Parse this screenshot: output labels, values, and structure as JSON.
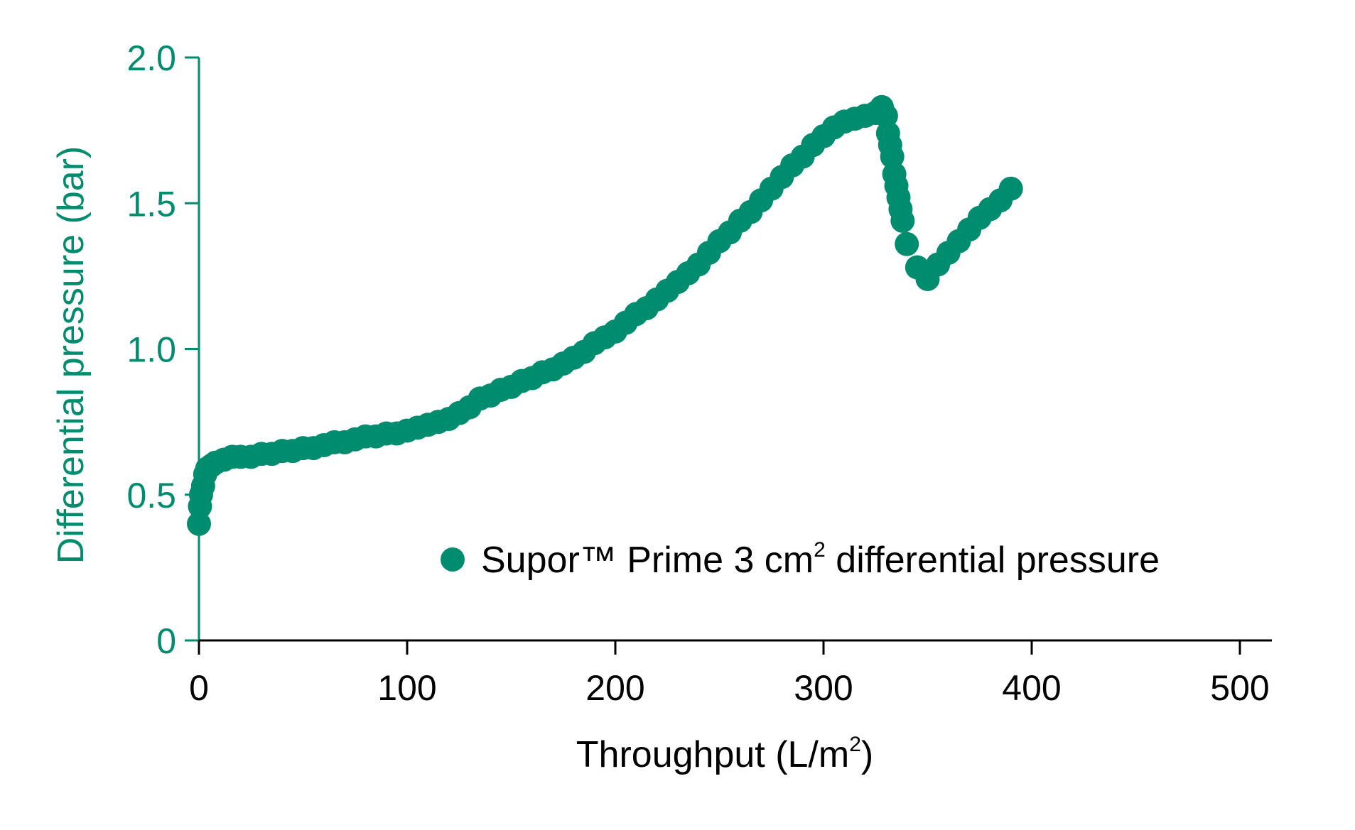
{
  "colors": {
    "series": "#008C6E",
    "y_axis": "#008C6E",
    "x_axis": "#000000",
    "background": "#ffffff"
  },
  "chart_data": {
    "type": "scatter",
    "title": "",
    "xlabel": "Throughput (L/m",
    "xlabel_sup": "2",
    "xlabel_end": ")",
    "ylabel": "Differential pressure (bar)",
    "xlim": [
      0,
      500
    ],
    "ylim": [
      0,
      2.0
    ],
    "x_ticks": [
      "0",
      "100",
      "200",
      "300",
      "400",
      "500"
    ],
    "y_ticks": [
      "0",
      "0.5",
      "1.0",
      "1.5",
      "2.0"
    ],
    "grid": false,
    "legend": {
      "placement": "lower-right",
      "label": "Supor™ Prime 3 cm",
      "label_sup": "2",
      "label_end": " differential pressure"
    },
    "series": [
      {
        "name": "Supor™ Prime 3 cm2 differential pressure",
        "x": [
          0,
          0.5,
          1,
          2,
          3,
          4,
          6,
          8,
          12,
          16,
          20,
          25,
          30,
          35,
          40,
          45,
          50,
          55,
          60,
          65,
          70,
          75,
          80,
          85,
          90,
          95,
          100,
          105,
          110,
          115,
          120,
          125,
          130,
          135,
          140,
          145,
          150,
          155,
          160,
          165,
          170,
          175,
          180,
          185,
          190,
          195,
          200,
          205,
          210,
          215,
          220,
          225,
          230,
          235,
          240,
          245,
          250,
          255,
          260,
          265,
          270,
          275,
          280,
          285,
          290,
          295,
          300,
          305,
          310,
          315,
          320,
          325,
          328,
          330,
          331,
          332,
          333,
          334,
          335,
          336,
          337,
          338,
          340,
          345,
          350,
          355,
          360,
          365,
          370,
          375,
          380,
          385,
          390
        ],
        "y": [
          0.4,
          0.46,
          0.5,
          0.53,
          0.57,
          0.59,
          0.6,
          0.61,
          0.62,
          0.63,
          0.63,
          0.63,
          0.64,
          0.64,
          0.65,
          0.65,
          0.66,
          0.66,
          0.67,
          0.68,
          0.68,
          0.69,
          0.7,
          0.7,
          0.71,
          0.71,
          0.72,
          0.73,
          0.74,
          0.75,
          0.76,
          0.78,
          0.8,
          0.83,
          0.84,
          0.86,
          0.87,
          0.89,
          0.9,
          0.92,
          0.93,
          0.95,
          0.97,
          0.99,
          1.02,
          1.04,
          1.06,
          1.09,
          1.12,
          1.14,
          1.17,
          1.2,
          1.23,
          1.26,
          1.29,
          1.33,
          1.37,
          1.4,
          1.44,
          1.47,
          1.51,
          1.55,
          1.59,
          1.63,
          1.66,
          1.7,
          1.73,
          1.76,
          1.78,
          1.79,
          1.8,
          1.81,
          1.83,
          1.8,
          1.74,
          1.7,
          1.66,
          1.6,
          1.56,
          1.52,
          1.48,
          1.44,
          1.36,
          1.28,
          1.24,
          1.29,
          1.33,
          1.37,
          1.41,
          1.45,
          1.48,
          1.51,
          1.55
        ]
      }
    ]
  }
}
